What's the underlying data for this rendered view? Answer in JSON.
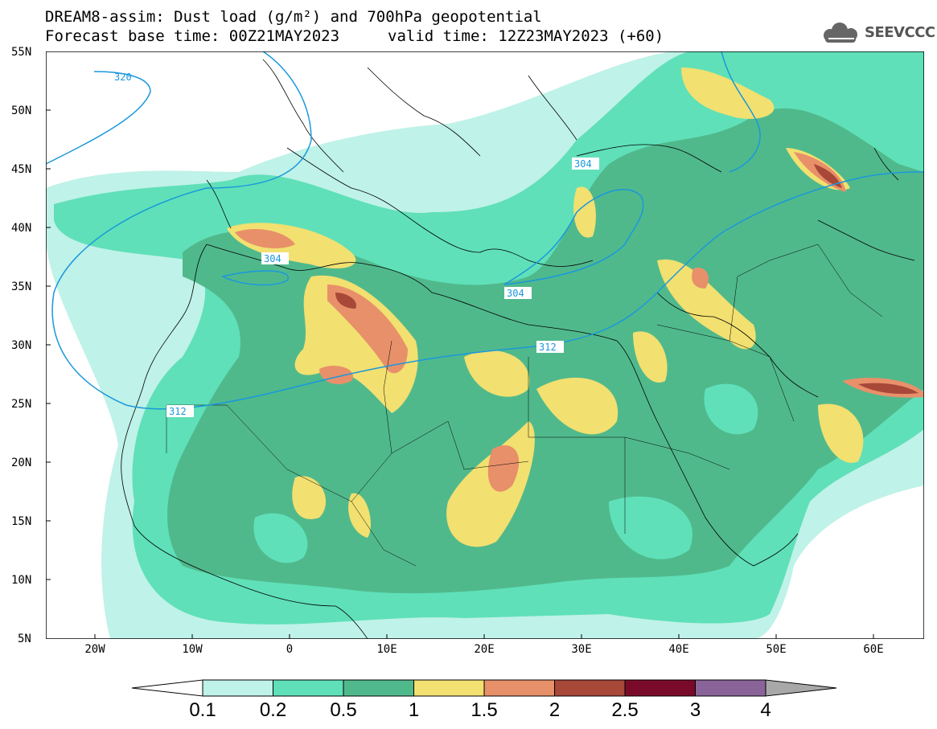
{
  "header": {
    "title_line1": "DREAM8-assim: Dust load (g/m²) and 700hPa geopotential",
    "title_line2_left": "Forecast base time: 00Z21MAY2023",
    "title_line2_right": "valid time: 12Z23MAY2023 (+60)",
    "logo_text": "SEEVCCC"
  },
  "axes": {
    "y_labels": [
      "55N",
      "50N",
      "45N",
      "40N",
      "35N",
      "30N",
      "25N",
      "20N",
      "15N",
      "10N",
      "5N"
    ],
    "x_labels": [
      "20W",
      "10W",
      "0",
      "10E",
      "20E",
      "30E",
      "40E",
      "50E",
      "60E"
    ]
  },
  "contours": {
    "labels": [
      "320",
      "304",
      "304",
      "304",
      "312",
      "312"
    ]
  },
  "colorbar": {
    "ticks": [
      "0.1",
      "0.2",
      "0.5",
      "1",
      "1.5",
      "2",
      "2.5",
      "3",
      "4"
    ],
    "colors": [
      "#ffffff",
      "#bff2e8",
      "#5fe0b8",
      "#50b98c",
      "#f2e070",
      "#e8906a",
      "#a84838",
      "#7a0a2a",
      "#8a6498",
      "#a8a8a8"
    ]
  },
  "colors": {
    "level1": "#bff2e8",
    "level2": "#5fe0b8",
    "level3": "#50b98c",
    "level4": "#f2e070",
    "level5": "#e8906a",
    "level6": "#a84838",
    "contour": "#1a98dc"
  }
}
